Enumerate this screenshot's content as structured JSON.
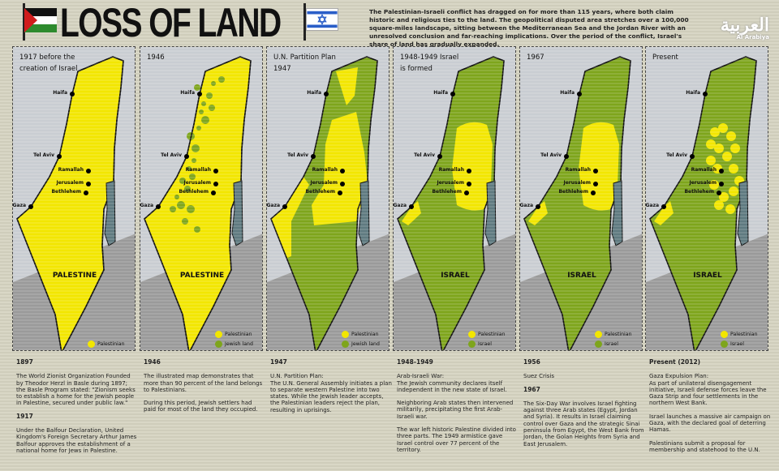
{
  "header": {
    "title": "LOSS OF LAND",
    "intro": "The Palestinian-Israeli conflict has dragged on for more than 115 years, where both claim historic and religious ties to the land. The geopolitical disputed area stretches over a 100,000 square-miles landscape, sitting between the Mediterranean Sea and the Jordan River with an unresolved conclusion and far-reaching implications. Over the period of the conflict, Israel's share of land has gradually expanded.",
    "logo_arabic": "العربية",
    "logo_en": "Al Arabiya"
  },
  "colors": {
    "palestinian": "#f2e600",
    "jewish": "#7ea51c",
    "sea": "#5f7a80"
  },
  "cities": [
    "Haifa",
    "Tel Aviv",
    "Ramallah",
    "Jerusalem",
    "Bethlehem",
    "Gaza"
  ],
  "panels": [
    {
      "title": "1917 before the creation of Israel",
      "name": "PALESTINE",
      "legend": [
        "Palestinian"
      ]
    },
    {
      "title": "1946",
      "name": "PALESTINE",
      "legend": [
        "Palestinian",
        "Jewish land"
      ]
    },
    {
      "title": "U.N. Partition Plan 1947",
      "name": "",
      "legend": [
        "Palestinian",
        "Jewish land"
      ]
    },
    {
      "title": "1948-1949 Israel is formed",
      "name": "ISRAEL",
      "legend": [
        "Palestinian",
        "Israel"
      ]
    },
    {
      "title": "1967",
      "name": "ISRAEL",
      "legend": [
        "Palestinian",
        "Israel"
      ]
    },
    {
      "title": "Present",
      "name": "ISRAEL",
      "legend": [
        "Palestinian",
        "Israel"
      ]
    }
  ],
  "columns": [
    {
      "blocks": [
        {
          "h": "1897",
          "p": [
            "The World Zionist Organization Founded by Theodor Herzl in Basle during 1897; the Basle Program stated: \"Zionism seeks to establish a home for the Jewish people in Palestine, secured under public law.\""
          ]
        },
        {
          "h": "1917",
          "p": [
            "Under the Balfour Declaration, United Kingdom's Foreign Secretary Arthur James Balfour approves the establishment of a national home for Jews in Palestine."
          ]
        }
      ]
    },
    {
      "blocks": [
        {
          "h": "1946",
          "p": [
            "The illustrated map demonstrates that more than 90 percent  of the land belongs to Palestinians.",
            "During this period, Jewish settlers had paid for most of the land they occupied."
          ]
        }
      ]
    },
    {
      "blocks": [
        {
          "h": "1947",
          "p": [
            "U.N. Partition Plan:\nThe U.N. General Assembly initiates a plan to separate western Palestine into two states. While the Jewish leader accepts, the Palestinian leaders reject the plan, resulting in uprisings."
          ]
        }
      ]
    },
    {
      "blocks": [
        {
          "h": "1948-1949",
          "p": [
            "Arab-Israeli War:\nThe Jewish community declares itself independent in the new state of Israel.",
            "Neighboring Arab states then intervened militarily, precipitating the first Arab-Israeli war.",
            "The war left historic Palestine divided into three parts. The 1949 armistice gave Israel control over 77 percent of the territory."
          ]
        }
      ]
    },
    {
      "blocks": [
        {
          "h": "1956",
          "p": [
            "Suez Crisis"
          ]
        },
        {
          "h": "1967",
          "p": [
            "The Six-Day War involves Israel fighting against three Arab states (Egypt, Jordan and Syria). It results in Israel claiming control over Gaza and the strategic Sinai peninsula from Egypt, the West Bank from Jordan, the Golan Heights from Syria and East Jerusalem."
          ]
        }
      ]
    },
    {
      "blocks": [
        {
          "h": "Present (2012)",
          "p": [
            "Gaza Expulsion Plan:\nAs part of unilateral disengagement initiative, Israeli defense forces leave the Gaza Strip and four settlements in the northern West Bank.",
            "Israel launches a massive air campaign on Gaza, with the declared goal of deterring Hamas.",
            "Palestinians submit a proposal for membership and statehood to the U.N."
          ]
        }
      ]
    }
  ]
}
